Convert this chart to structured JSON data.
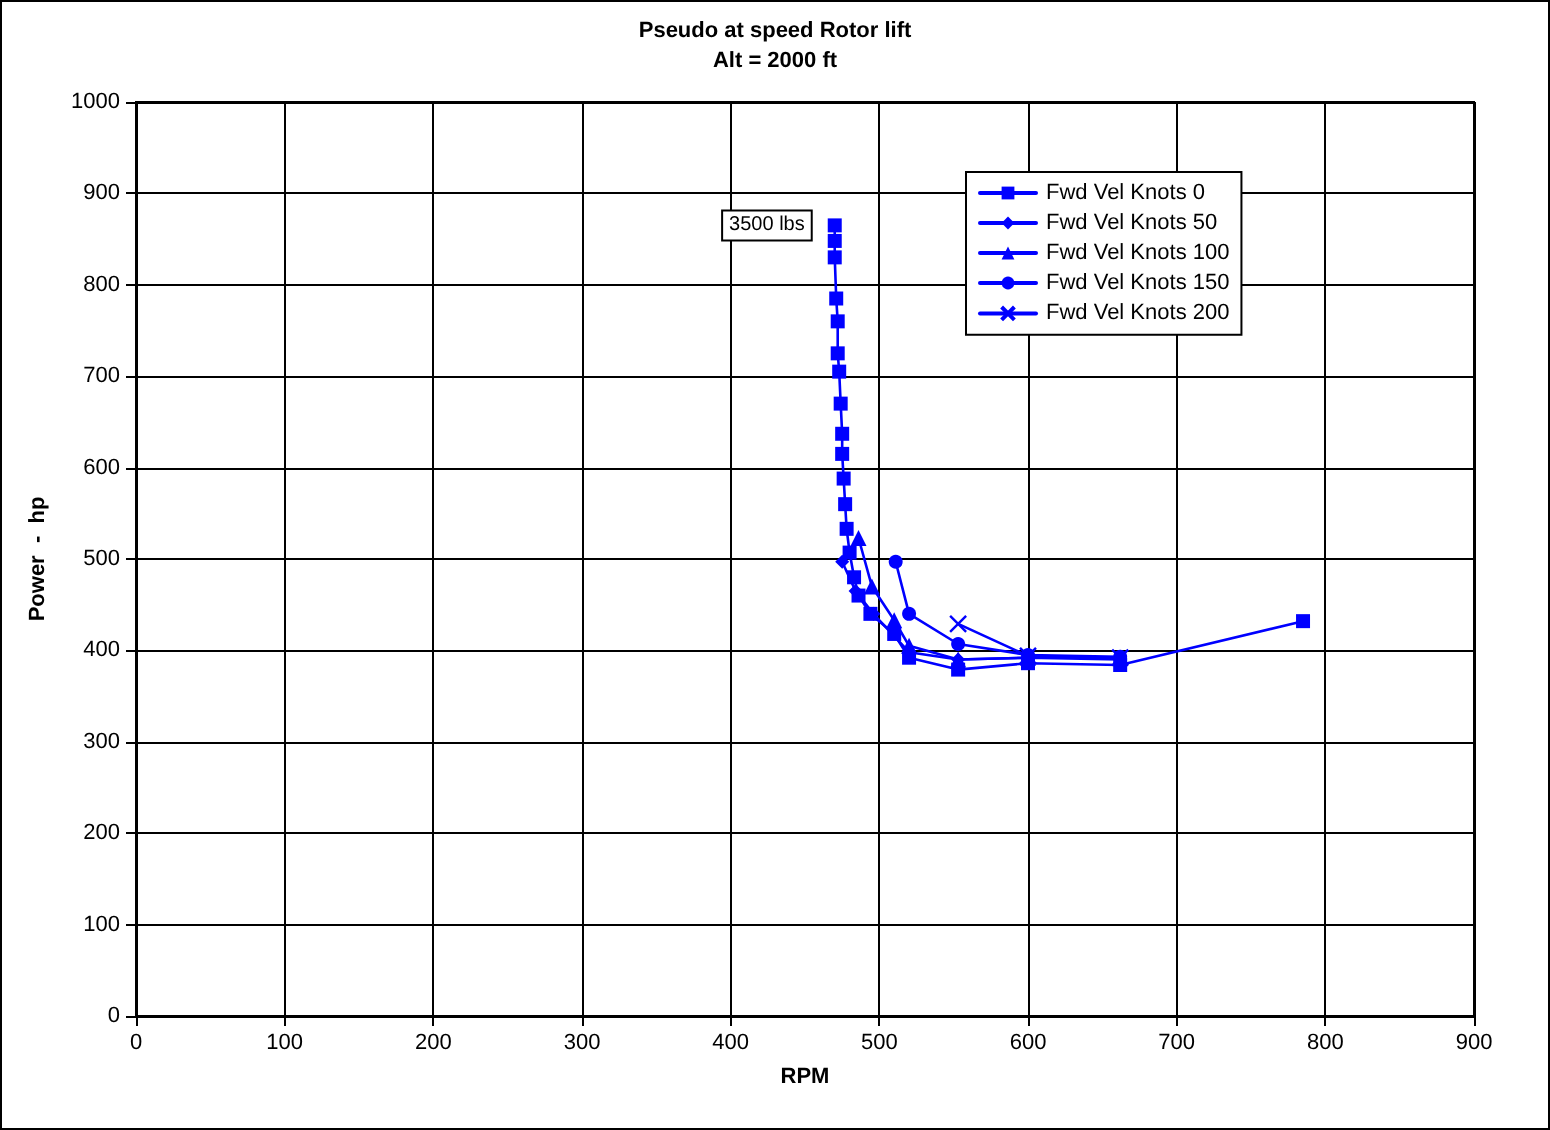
{
  "chart_data": {
    "type": "line",
    "title": "Pseudo at speed Rotor lift",
    "subtitle": "Alt = 2000 ft",
    "xlabel": "RPM",
    "ylabel": "Power  -  hp",
    "xlim": [
      0,
      900
    ],
    "xticks": [
      0,
      100,
      200,
      300,
      400,
      500,
      600,
      700,
      800,
      900
    ],
    "ylim": [
      0,
      1000
    ],
    "yticks": [
      0,
      100,
      200,
      300,
      400,
      500,
      600,
      700,
      800,
      900,
      1000
    ],
    "grid": true,
    "legend": "top right",
    "line_style": "solid",
    "annotations": [
      {
        "text": "3500 lbs",
        "x": 470,
        "y": 865
      }
    ],
    "series": [
      {
        "name": "Fwd Vel Knots 0",
        "color": "#0000ff",
        "marker": "square",
        "x": [
          470,
          470,
          470,
          471,
          472,
          472,
          473,
          474,
          475,
          475,
          476,
          477,
          478,
          480,
          483,
          486,
          494,
          510,
          520,
          553,
          600,
          662,
          785
        ],
        "values": [
          865,
          848,
          830,
          785,
          760,
          725,
          705,
          670,
          637,
          615,
          588,
          560,
          533,
          507,
          480,
          460,
          440,
          418,
          392,
          379,
          386,
          384,
          432
        ]
      },
      {
        "name": "Fwd Vel Knots 50",
        "color": "#0000ff",
        "marker": "diamond",
        "x": [
          475,
          484,
          496,
          520,
          553,
          600,
          662
        ],
        "values": [
          497,
          465,
          440,
          398,
          390,
          392,
          390
        ]
      },
      {
        "name": "Fwd Vel Knots 100",
        "color": "#0000ff",
        "marker": "triangle",
        "x": [
          486,
          495,
          510,
          520,
          553,
          600,
          662
        ],
        "values": [
          523,
          470,
          433,
          405,
          390,
          392,
          392
        ]
      },
      {
        "name": "Fwd Vel Knots 150",
        "color": "#0000ff",
        "marker": "circle",
        "x": [
          511,
          520,
          553,
          600,
          662
        ],
        "values": [
          497,
          440,
          407,
          395,
          393
        ]
      },
      {
        "name": "Fwd Vel Knots 200",
        "color": "#0000ff",
        "marker": "cross",
        "x": [
          553,
          600,
          662
        ],
        "values": [
          429,
          394,
          392
        ]
      }
    ]
  }
}
